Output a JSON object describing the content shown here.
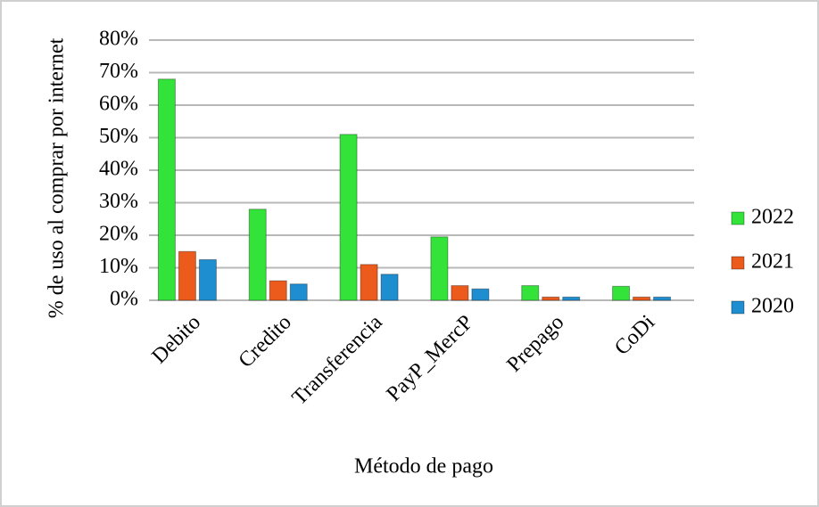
{
  "chart_data": {
    "type": "bar",
    "y_label": "% de uso al comprar por internet",
    "x_label": "Método de pago",
    "categories": [
      "Debito",
      "Credito",
      "Transferencia",
      "PayP_MercP",
      "Prepago",
      "CoDi"
    ],
    "series": [
      {
        "name": "2022",
        "color": "#33e33a",
        "values": [
          68,
          28,
          51,
          19.5,
          4.5,
          4.3
        ]
      },
      {
        "name": "2021",
        "color": "#ec5a1c",
        "values": [
          15,
          6,
          11,
          4.5,
          1,
          1
        ]
      },
      {
        "name": "2020",
        "color": "#1f8ed0",
        "values": [
          12.5,
          5,
          8,
          3.5,
          1,
          1
        ]
      }
    ],
    "ylim": [
      0,
      80
    ],
    "yticks": [
      {
        "value": 0,
        "label": "0%"
      },
      {
        "value": 10,
        "label": "10%"
      },
      {
        "value": 20,
        "label": "20%"
      },
      {
        "value": 30,
        "label": "30%"
      },
      {
        "value": 40,
        "label": "40%"
      },
      {
        "value": 50,
        "label": "50%"
      },
      {
        "value": 60,
        "label": "60%"
      },
      {
        "value": 70,
        "label": "70%"
      },
      {
        "value": 80,
        "label": "80%"
      }
    ],
    "grid": true,
    "legend": "right"
  }
}
